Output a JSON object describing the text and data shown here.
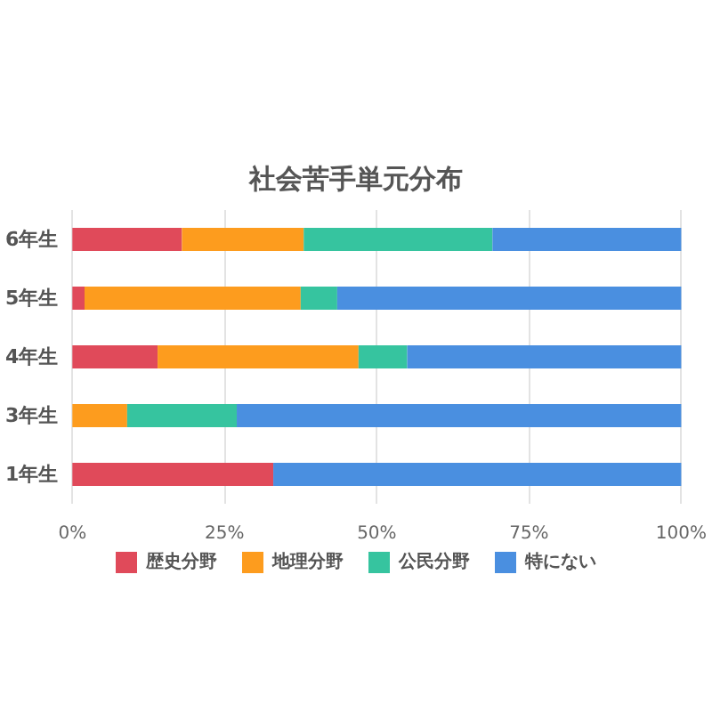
{
  "chart_data": {
    "type": "bar",
    "title": "社会苦手単元分布",
    "orientation": "horizontal",
    "stacked": true,
    "categories": [
      "6年生",
      "5年生",
      "4年生",
      "3年生",
      "1年生"
    ],
    "series": [
      {
        "name": "歴史分野",
        "color": "#e04a5a",
        "values": [
          18,
          2,
          14,
          0,
          33
        ]
      },
      {
        "name": "地理分野",
        "color": "#fd9c1e",
        "values": [
          20,
          35.5,
          33,
          9,
          0
        ]
      },
      {
        "name": "公民分野",
        "color": "#36c49f",
        "values": [
          31,
          6,
          8,
          18,
          0
        ]
      },
      {
        "name": "特にない",
        "color": "#4a8fe0",
        "values": [
          31,
          56.5,
          45,
          73,
          67
        ]
      }
    ],
    "xlim": [
      0,
      100
    ],
    "xticks": [
      {
        "value": 0,
        "label": "0%"
      },
      {
        "value": 25,
        "label": "25%"
      },
      {
        "value": 50,
        "label": "50%"
      },
      {
        "value": 75,
        "label": "75%"
      },
      {
        "value": 100,
        "label": "100%"
      }
    ],
    "grid": "x",
    "legend": "bottom"
  }
}
